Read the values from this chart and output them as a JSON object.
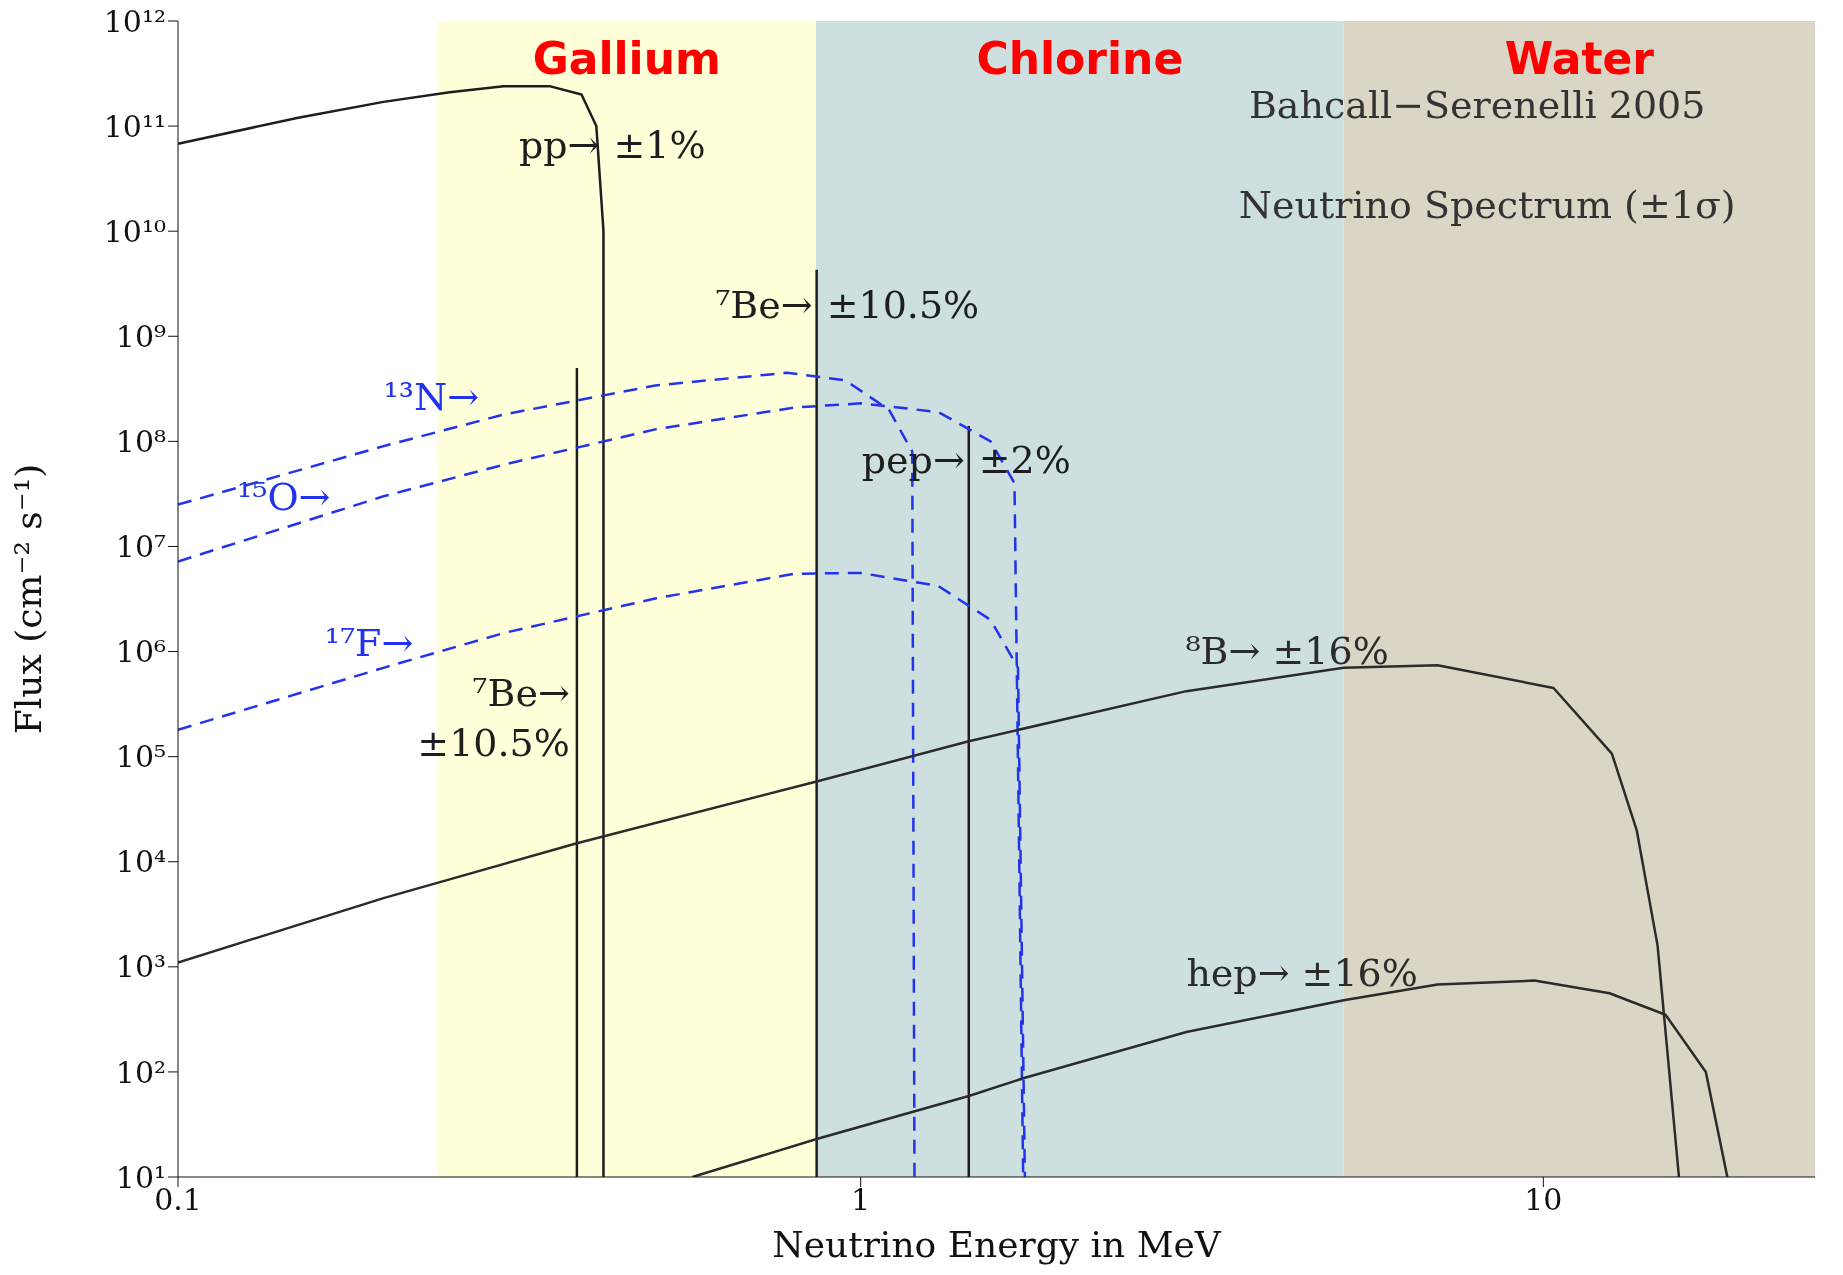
{
  "chart_data": {
    "type": "line",
    "title": "Bahcall−Serenelli 2005",
    "subtitle": "Neutrino Spectrum (±1σ)",
    "xlabel": "Neutrino Energy in MeV",
    "ylabel": "Flux (cm⁻² s⁻¹)",
    "log": "xy",
    "marker": "none",
    "xlim": [
      0.1,
      25
    ],
    "xticks": [
      0.1,
      1,
      10
    ],
    "ylim": [
      10,
      1000000000000
    ],
    "yticks": [
      {
        "value": 10,
        "label": "10¹"
      },
      {
        "value": 100,
        "label": "10²"
      },
      {
        "value": 1000,
        "label": "10³"
      },
      {
        "value": 10000,
        "label": "10⁴"
      },
      {
        "value": 100000,
        "label": "10⁵"
      },
      {
        "value": 1000000,
        "label": "10⁶"
      },
      {
        "value": 10000000,
        "label": "10⁷"
      },
      {
        "value": 100000000,
        "label": "10⁸"
      },
      {
        "value": 1000000000,
        "label": "10⁹"
      },
      {
        "value": 10000000000,
        "label": "10¹⁰"
      },
      {
        "value": 100000000000,
        "label": "10¹¹"
      },
      {
        "value": 1000000000000,
        "label": "10¹²"
      }
    ],
    "bands": [
      {
        "axis": "x",
        "from": 0.24,
        "to": 0.86,
        "label": "Gallium",
        "color": "#ffffd9"
      },
      {
        "axis": "x",
        "from": 0.86,
        "to": 5.1,
        "label": "Chlorine",
        "color": "#cde0df"
      },
      {
        "axis": "x",
        "from": 5.1,
        "to": 25,
        "label": "Water",
        "color": "#dbd5c6"
      }
    ],
    "series": [
      {
        "name": "pp→ ±1%",
        "color": "#1e1e1e",
        "line_style": "solid",
        "x": [
          0.1,
          0.15,
          0.2,
          0.25,
          0.3,
          0.35,
          0.39,
          0.41,
          0.42,
          0.42
        ],
        "values": [
          68000000000,
          120000000000,
          170000000000,
          210000000000,
          240000000000,
          240000000000,
          200000000000,
          100000000000,
          10000000000,
          10
        ]
      },
      {
        "name": "⁷Be→ ±10.5%",
        "color": "#1e1e1e",
        "line_style": "solid",
        "x": [
          0.384,
          0.384
        ],
        "values": [
          10,
          500000000
        ]
      },
      {
        "name": "⁷Be→ ±10.5%",
        "color": "#1e1e1e",
        "line_style": "solid",
        "x": [
          0.862,
          0.862
        ],
        "values": [
          10,
          4300000000
        ]
      },
      {
        "name": "pep→ ±2%",
        "color": "#1e1e1e",
        "line_style": "solid",
        "x": [
          1.44,
          1.44
        ],
        "values": [
          10,
          140000000
        ]
      },
      {
        "name": "¹³N→",
        "color": "#2233ee",
        "line_style": "dashed",
        "x": [
          0.1,
          0.2,
          0.3,
          0.5,
          0.78,
          0.95,
          1.1,
          1.19,
          1.199
        ],
        "values": [
          25000000,
          90000000,
          180000000,
          340000000,
          450000000,
          380000000,
          200000000,
          80000000,
          10
        ]
      },
      {
        "name": "¹⁵O→",
        "color": "#2233ee",
        "line_style": "dashed",
        "x": [
          0.1,
          0.2,
          0.3,
          0.5,
          0.8,
          1.0,
          1.3,
          1.55,
          1.68,
          1.73
        ],
        "values": [
          7200000,
          30000000,
          60000000,
          130000000,
          210000000,
          230000000,
          190000000,
          100000000,
          40000000,
          10
        ]
      },
      {
        "name": "¹⁷F→",
        "color": "#2233ee",
        "line_style": "dashed",
        "x": [
          0.1,
          0.2,
          0.3,
          0.5,
          0.8,
          1.0,
          1.3,
          1.55,
          1.7,
          1.74
        ],
        "values": [
          180000,
          700000,
          1500000,
          3200000,
          5500000,
          5600000,
          4200000,
          2000000,
          700000,
          10
        ]
      },
      {
        "name": "⁸B→ ±16%",
        "color": "#2b2b2b",
        "line_style": "solid",
        "x": [
          0.1,
          0.2,
          0.384,
          0.862,
          1.44,
          3,
          5.1,
          7,
          10.35,
          12.6,
          13.7,
          14.7,
          15.8
        ],
        "values": [
          1100,
          4500,
          15000,
          58000,
          140000,
          420000,
          700000,
          740000,
          450000,
          107000,
          20000,
          1600,
          10
        ]
      },
      {
        "name": "hep→ ±16%",
        "color": "#2b2b2b",
        "line_style": "solid",
        "x": [
          0.567,
          0.862,
          1.44,
          1.73,
          3,
          5.1,
          7,
          9.7,
          12.5,
          15.1,
          17.3,
          18.6
        ],
        "values": [
          10,
          23,
          59,
          87,
          240,
          480,
          680,
          740,
          560,
          350,
          100,
          10
        ]
      }
    ]
  }
}
